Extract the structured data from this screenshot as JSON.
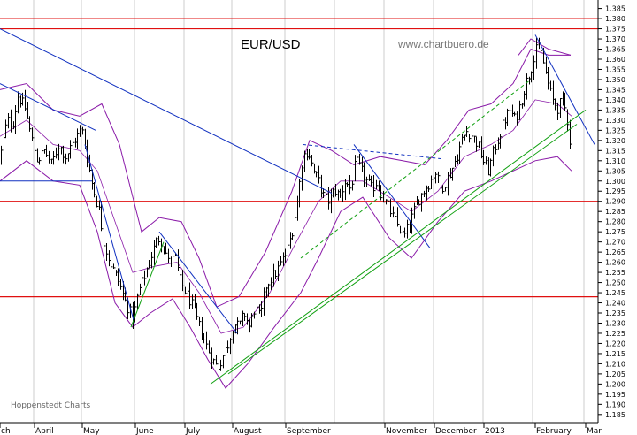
{
  "chart_data": {
    "type": "candlestick",
    "title": "EUR/USD",
    "watermark": "www.chartbuero.de",
    "source": "Hoppenstedt Charts",
    "ylim": [
      1.181,
      1.387
    ],
    "y_tick_step": 0.005,
    "y_axis_position": "right",
    "x_labels": [
      "ch",
      "April",
      "May",
      "June",
      "July",
      "August",
      "September",
      "November",
      "December",
      "2013",
      "February",
      "Mar"
    ],
    "price_path": [
      [
        0,
        1.312
      ],
      [
        8,
        1.33
      ],
      [
        14,
        1.328
      ],
      [
        20,
        1.342
      ],
      [
        28,
        1.336
      ],
      [
        35,
        1.322
      ],
      [
        42,
        1.31
      ],
      [
        50,
        1.315
      ],
      [
        58,
        1.308
      ],
      [
        66,
        1.318
      ],
      [
        74,
        1.312
      ],
      [
        84,
        1.32
      ],
      [
        92,
        1.326
      ],
      [
        98,
        1.312
      ],
      [
        104,
        1.298
      ],
      [
        112,
        1.285
      ],
      [
        118,
        1.268
      ],
      [
        126,
        1.258
      ],
      [
        134,
        1.25
      ],
      [
        142,
        1.24
      ],
      [
        150,
        1.232
      ],
      [
        156,
        1.245
      ],
      [
        162,
        1.252
      ],
      [
        170,
        1.262
      ],
      [
        178,
        1.272
      ],
      [
        184,
        1.27
      ],
      [
        190,
        1.26
      ],
      [
        198,
        1.262
      ],
      [
        204,
        1.25
      ],
      [
        210,
        1.245
      ],
      [
        216,
        1.24
      ],
      [
        222,
        1.232
      ],
      [
        228,
        1.225
      ],
      [
        234,
        1.218
      ],
      [
        240,
        1.212
      ],
      [
        246,
        1.208
      ],
      [
        252,
        1.214
      ],
      [
        258,
        1.22
      ],
      [
        264,
        1.23
      ],
      [
        270,
        1.228
      ],
      [
        276,
        1.235
      ],
      [
        282,
        1.228
      ],
      [
        288,
        1.238
      ],
      [
        294,
        1.232
      ],
      [
        300,
        1.248
      ],
      [
        306,
        1.252
      ],
      [
        312,
        1.255
      ],
      [
        318,
        1.26
      ],
      [
        324,
        1.265
      ],
      [
        330,
        1.275
      ],
      [
        336,
        1.29
      ],
      [
        342,
        1.312
      ],
      [
        348,
        1.315
      ],
      [
        354,
        1.305
      ],
      [
        360,
        1.3
      ],
      [
        366,
        1.292
      ],
      [
        372,
        1.29
      ],
      [
        378,
        1.296
      ],
      [
        384,
        1.292
      ],
      [
        390,
        1.3
      ],
      [
        396,
        1.296
      ],
      [
        402,
        1.31
      ],
      [
        408,
        1.305
      ],
      [
        414,
        1.3
      ],
      [
        420,
        1.296
      ],
      [
        426,
        1.3
      ],
      [
        432,
        1.292
      ],
      [
        438,
        1.288
      ],
      [
        444,
        1.282
      ],
      [
        450,
        1.278
      ],
      [
        456,
        1.272
      ],
      [
        462,
        1.278
      ],
      [
        468,
        1.285
      ],
      [
        474,
        1.292
      ],
      [
        480,
        1.296
      ],
      [
        486,
        1.3
      ],
      [
        492,
        1.305
      ],
      [
        498,
        1.296
      ],
      [
        504,
        1.3
      ],
      [
        510,
        1.305
      ],
      [
        516,
        1.312
      ],
      [
        522,
        1.32
      ],
      [
        528,
        1.325
      ],
      [
        534,
        1.322
      ],
      [
        540,
        1.318
      ],
      [
        546,
        1.31
      ],
      [
        552,
        1.305
      ],
      [
        558,
        1.315
      ],
      [
        564,
        1.322
      ],
      [
        570,
        1.33
      ],
      [
        576,
        1.335
      ],
      [
        582,
        1.33
      ],
      [
        588,
        1.338
      ],
      [
        594,
        1.348
      ],
      [
        600,
        1.355
      ],
      [
        606,
        1.368
      ],
      [
        612,
        1.362
      ],
      [
        618,
        1.35
      ],
      [
        624,
        1.34
      ],
      [
        630,
        1.336
      ],
      [
        636,
        1.34
      ],
      [
        642,
        1.328
      ],
      [
        646,
        1.308
      ]
    ],
    "horizontal_lines": [
      {
        "y": 1.38,
        "color": "#e01010"
      },
      {
        "y": 1.375,
        "color": "#e01010"
      },
      {
        "y": 1.29,
        "color": "#e01010"
      },
      {
        "y": 1.243,
        "color": "#e01010"
      }
    ],
    "segments": [
      {
        "from": [
          0,
          1.375
        ],
        "to": [
          375,
          1.294
        ],
        "color": "#1030c0",
        "dash": false
      },
      {
        "from": [
          0,
          1.348
        ],
        "to": [
          108,
          1.325
        ],
        "color": "#1030c0",
        "dash": false
      },
      {
        "from": [
          0,
          1.3
        ],
        "to": [
          104,
          1.3
        ],
        "color": "#1030c0",
        "dash": false
      },
      {
        "from": [
          96,
          1.318
        ],
        "to": [
          152,
          1.23
        ],
        "color": "#1030c0",
        "dash": false
      },
      {
        "from": [
          180,
          1.275
        ],
        "to": [
          268,
          1.225
        ],
        "color": "#1030c0",
        "dash": false
      },
      {
        "from": [
          400,
          1.318
        ],
        "to": [
          486,
          1.267
        ],
        "color": "#1030c0",
        "dash": false
      },
      {
        "from": [
          342,
          1.318
        ],
        "to": [
          498,
          1.311
        ],
        "color": "#1030c0",
        "dash": true
      },
      {
        "from": [
          605,
          1.372
        ],
        "to": [
          672,
          1.318
        ],
        "color": "#1030c0",
        "dash": false
      },
      {
        "from": [
          238,
          1.2
        ],
        "to": [
          662,
          1.335
        ],
        "color": "#10a010",
        "dash": false
      },
      {
        "from": [
          258,
          1.205
        ],
        "to": [
          652,
          1.328
        ],
        "color": "#10a010",
        "dash": false
      },
      {
        "from": [
          340,
          1.262
        ],
        "to": [
          600,
          1.35
        ],
        "color": "#10a010",
        "dash": true
      },
      {
        "from": [
          148,
          1.228
        ],
        "to": [
          185,
          1.27
        ],
        "color": "#10a010",
        "dash": false
      }
    ],
    "bollinger_upper": [
      [
        0,
        1.345
      ],
      [
        30,
        1.348
      ],
      [
        60,
        1.335
      ],
      [
        90,
        1.332
      ],
      [
        115,
        1.338
      ],
      [
        135,
        1.318
      ],
      [
        160,
        1.275
      ],
      [
        180,
        1.282
      ],
      [
        205,
        1.28
      ],
      [
        225,
        1.262
      ],
      [
        245,
        1.238
      ],
      [
        270,
        1.243
      ],
      [
        300,
        1.265
      ],
      [
        330,
        1.295
      ],
      [
        350,
        1.32
      ],
      [
        375,
        1.315
      ],
      [
        400,
        1.308
      ],
      [
        430,
        1.312
      ],
      [
        455,
        1.31
      ],
      [
        480,
        1.308
      ],
      [
        505,
        1.32
      ],
      [
        530,
        1.335
      ],
      [
        555,
        1.338
      ],
      [
        580,
        1.348
      ],
      [
        600,
        1.365
      ],
      [
        620,
        1.362
      ],
      [
        645,
        1.362
      ]
    ],
    "bollinger_lower": [
      [
        0,
        1.3
      ],
      [
        30,
        1.31
      ],
      [
        60,
        1.3
      ],
      [
        90,
        1.298
      ],
      [
        110,
        1.275
      ],
      [
        130,
        1.24
      ],
      [
        150,
        1.228
      ],
      [
        170,
        1.235
      ],
      [
        195,
        1.242
      ],
      [
        215,
        1.228
      ],
      [
        235,
        1.212
      ],
      [
        255,
        1.198
      ],
      [
        280,
        1.21
      ],
      [
        310,
        1.228
      ],
      [
        340,
        1.245
      ],
      [
        360,
        1.262
      ],
      [
        385,
        1.285
      ],
      [
        410,
        1.292
      ],
      [
        440,
        1.272
      ],
      [
        465,
        1.262
      ],
      [
        495,
        1.28
      ],
      [
        525,
        1.295
      ],
      [
        555,
        1.3
      ],
      [
        580,
        1.305
      ],
      [
        605,
        1.31
      ],
      [
        630,
        1.312
      ],
      [
        646,
        1.305
      ]
    ],
    "bollinger_middle": [
      [
        0,
        1.322
      ],
      [
        30,
        1.33
      ],
      [
        60,
        1.318
      ],
      [
        90,
        1.315
      ],
      [
        110,
        1.305
      ],
      [
        130,
        1.28
      ],
      [
        150,
        1.255
      ],
      [
        175,
        1.258
      ],
      [
        200,
        1.26
      ],
      [
        225,
        1.245
      ],
      [
        250,
        1.225
      ],
      [
        275,
        1.228
      ],
      [
        305,
        1.245
      ],
      [
        335,
        1.27
      ],
      [
        360,
        1.29
      ],
      [
        385,
        1.3
      ],
      [
        410,
        1.3
      ],
      [
        440,
        1.292
      ],
      [
        465,
        1.285
      ],
      [
        495,
        1.295
      ],
      [
        525,
        1.312
      ],
      [
        555,
        1.318
      ],
      [
        580,
        1.325
      ],
      [
        605,
        1.34
      ],
      [
        630,
        1.338
      ],
      [
        646,
        1.332
      ]
    ],
    "watermark_band": [
      [
        586,
        1.362
      ],
      [
        600,
        1.37
      ],
      [
        620,
        1.365
      ],
      [
        645,
        1.362
      ]
    ]
  }
}
